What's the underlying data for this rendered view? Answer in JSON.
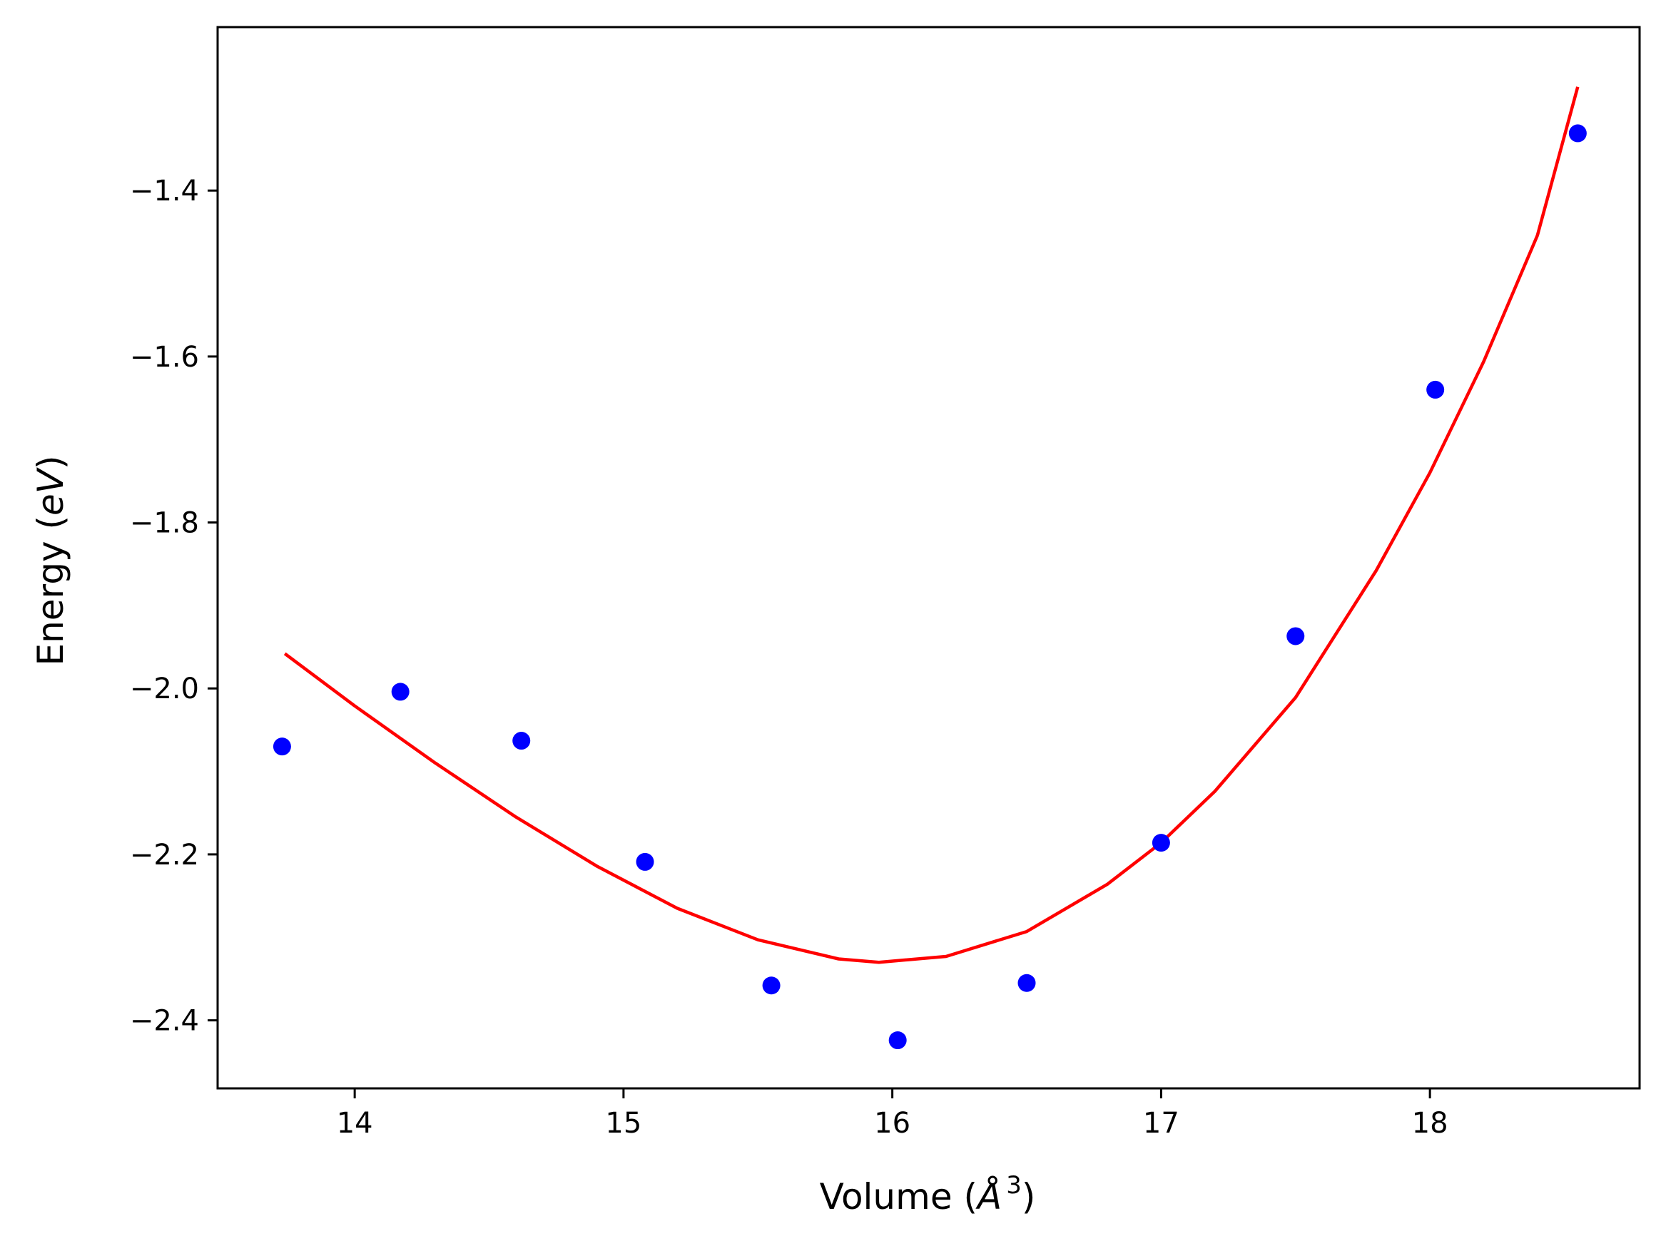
{
  "chart_data": {
    "type": "scatter",
    "xlabel": "Volume (",
    "xlabel_symbol": "Å",
    "xlabel_exp": "3",
    "xlabel_close": ")",
    "ylabel": "Energy (",
    "ylabel_unit": "eV",
    "ylabel_close": ")",
    "xlim": [
      13.49,
      18.78
    ],
    "ylim": [
      -2.482,
      -1.203
    ],
    "xticks": [
      14,
      15,
      16,
      17,
      18
    ],
    "xtick_labels": [
      "14",
      "15",
      "16",
      "17",
      "18"
    ],
    "yticks": [
      -2.4,
      -2.2,
      -2.0,
      -1.8,
      -1.6,
      -1.4
    ],
    "ytick_labels": [
      "−2.4",
      "−2.2",
      "−2.0",
      "−1.8",
      "−1.6",
      "−1.4"
    ],
    "grid": false,
    "series": [
      {
        "kind": "scatter",
        "color": "#0000ff",
        "x": [
          13.73,
          14.17,
          14.62,
          15.08,
          15.55,
          16.02,
          16.5,
          17.0,
          17.5,
          18.02,
          18.55
        ],
        "y": [
          -2.07,
          -2.004,
          -2.063,
          -2.209,
          -2.358,
          -2.424,
          -2.355,
          -2.186,
          -1.937,
          -1.64,
          -1.331
        ]
      },
      {
        "kind": "line",
        "color": "#ff0000",
        "x": [
          13.74,
          14.0,
          14.3,
          14.6,
          14.9,
          15.2,
          15.5,
          15.8,
          15.95,
          16.2,
          16.5,
          16.8,
          17.0,
          17.2,
          17.5,
          17.8,
          18.0,
          18.2,
          18.4,
          18.55
        ],
        "y": [
          -1.958,
          -2.021,
          -2.09,
          -2.155,
          -2.214,
          -2.265,
          -2.303,
          -2.326,
          -2.33,
          -2.323,
          -2.293,
          -2.236,
          -2.186,
          -2.124,
          -2.011,
          -1.858,
          -1.74,
          -1.606,
          -1.454,
          -1.275
        ]
      }
    ]
  }
}
